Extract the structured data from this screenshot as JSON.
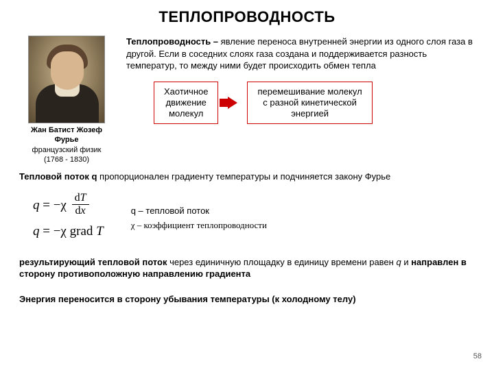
{
  "title": "ТЕПЛОПРОВОДНОСТЬ",
  "portrait": {
    "name_line1": "Жан Батист Жозеф",
    "name_line2": "Фурье",
    "sub_line1": "французский физик",
    "sub_line2": "(1768 - 1830)"
  },
  "definition": {
    "lead": "Теплопроводность –",
    "rest": " явление переноса внутренней энергии из одного слоя газа в другой. Если в соседних слоях газа создана и поддерживается разность температур, то между ними будет происходить обмен тепла"
  },
  "box_left_l1": "Хаотичное",
  "box_left_l2": "движение",
  "box_left_l3": "молекул",
  "box_right_l1": "перемешивание молекул",
  "box_right_l2": "с разной кинетической",
  "box_right_l3": "энергией",
  "flux_text_lead": "Тепловой поток q",
  "flux_text_rest": " пропорционален градиенту температуры и подчиняется закону Фурье",
  "formula1_lhs": "q",
  "formula1_eq": " = −χ ",
  "formula1_num": "dT",
  "formula1_den": "dx",
  "formula2": "q = −χ grad T",
  "legend_q": "q – тепловой поток",
  "legend_chi": "χ – коэффициент теплопроводности",
  "result_lead1": "результирующий тепловой поток",
  "result_mid": " через единичную площадку в единицу времени равен ",
  "result_q": "q",
  "result_tail": " и ",
  "result_lead2": "направлен в сторону противоположную направлению градиента",
  "energy_line": "Энергия переносится в сторону убывания температуры (к холодному телу)",
  "page_number": "58",
  "colors": {
    "accent": "#cc0000",
    "text": "#000000",
    "bg": "#ffffff"
  }
}
